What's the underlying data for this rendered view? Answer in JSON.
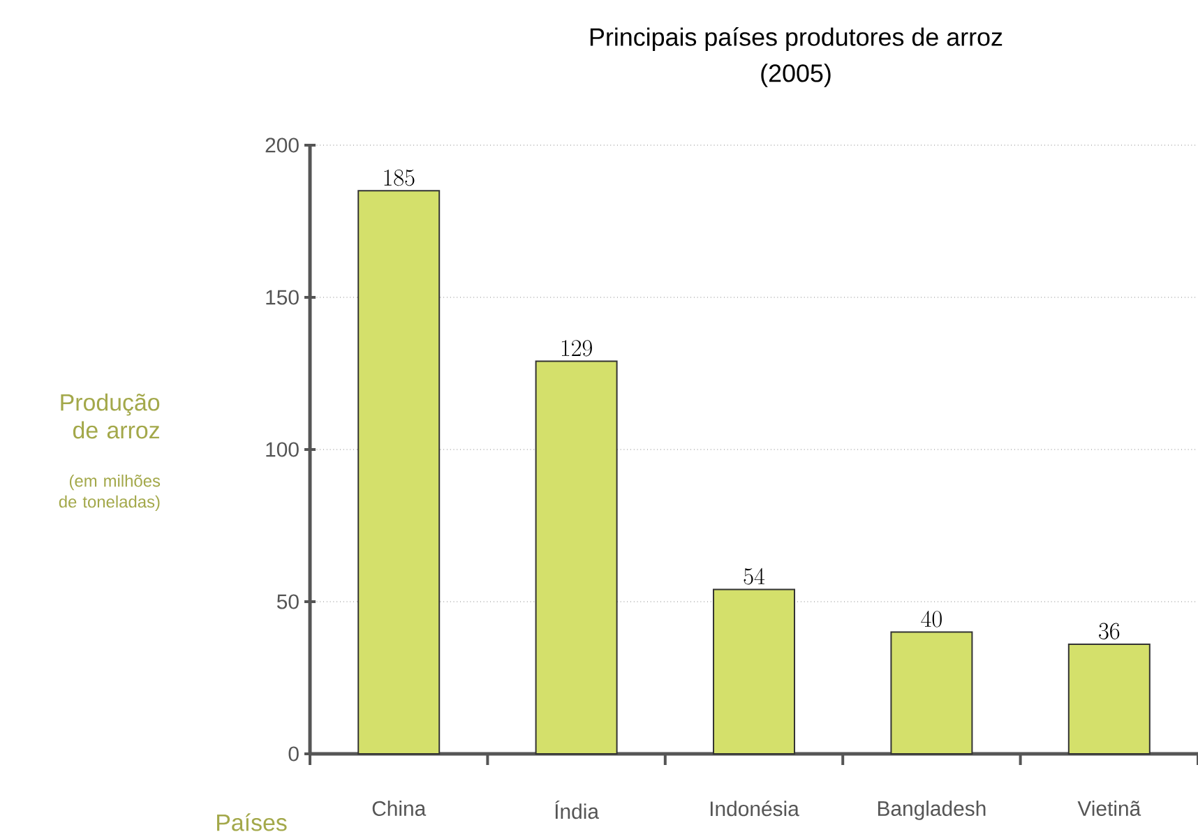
{
  "chart_data": {
    "type": "bar",
    "title": "Principais países produtores de arroz",
    "subtitle": "(2005)",
    "xlabel": "Países",
    "ylabel": "Produção de arroz",
    "annotations": [
      "(em milhões de toneladas)"
    ],
    "categories": [
      "China",
      "Índia",
      "Indonésia",
      "Bangladesh",
      "Vietinã"
    ],
    "values": [
      185,
      129,
      54,
      40,
      36
    ],
    "color": "#d4e06b",
    "ylim": [
      0,
      200
    ],
    "yticks": [
      0,
      50,
      100,
      150,
      200
    ],
    "grid": "y",
    "data_labels": true
  }
}
